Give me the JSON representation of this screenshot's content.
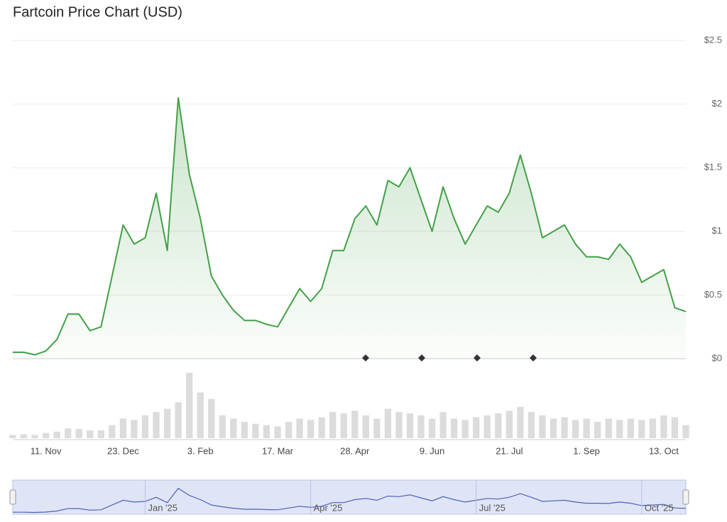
{
  "chart_data": {
    "type": "line",
    "title": "Fartcoin Price Chart (USD)",
    "categories": [
      null,
      null,
      null,
      "11. Nov",
      null,
      null,
      null,
      null,
      null,
      null,
      "23. Dec",
      null,
      null,
      null,
      null,
      null,
      null,
      "3. Feb",
      null,
      null,
      null,
      null,
      null,
      null,
      "17. Mar",
      null,
      null,
      null,
      null,
      null,
      null,
      "28. Apr",
      null,
      null,
      null,
      null,
      null,
      null,
      "9. Jun",
      null,
      null,
      null,
      null,
      null,
      null,
      "21. Jul",
      null,
      null,
      null,
      null,
      null,
      null,
      "1. Sep",
      null,
      null,
      null,
      null,
      null,
      null,
      "13. Oct",
      null,
      null
    ],
    "navigator_categories": [
      null,
      null,
      null,
      null,
      null,
      null,
      null,
      null,
      null,
      null,
      null,
      null,
      "Jan '25",
      null,
      null,
      null,
      null,
      null,
      null,
      null,
      null,
      null,
      null,
      null,
      null,
      null,
      null,
      "Apr '25",
      null,
      null,
      null,
      null,
      null,
      null,
      null,
      null,
      null,
      null,
      null,
      null,
      null,
      null,
      "Jul '25",
      null,
      null,
      null,
      null,
      null,
      null,
      null,
      null,
      null,
      null,
      null,
      null,
      null,
      null,
      "Oct '25",
      null,
      null,
      null,
      null
    ],
    "series": [
      {
        "name": "Price",
        "color": "#43a047",
        "values": [
          0.05,
          0.05,
          0.03,
          0.06,
          0.15,
          0.35,
          0.35,
          0.22,
          0.25,
          0.65,
          1.05,
          0.9,
          0.95,
          1.3,
          0.85,
          2.05,
          1.45,
          1.1,
          0.65,
          0.5,
          0.38,
          0.3,
          0.3,
          0.27,
          0.25,
          0.4,
          0.55,
          0.45,
          0.55,
          0.85,
          0.85,
          1.1,
          1.2,
          1.05,
          1.4,
          1.35,
          1.5,
          1.25,
          1.0,
          1.35,
          1.1,
          0.9,
          1.05,
          1.2,
          1.15,
          1.3,
          1.6,
          1.3,
          0.95,
          1.0,
          1.05,
          0.9,
          0.8,
          0.8,
          0.78,
          0.9,
          0.8,
          0.6,
          0.65,
          0.7,
          0.4,
          0.37
        ]
      }
    ],
    "volume": {
      "color": "#dcdcdc",
      "values": [
        5,
        6,
        5,
        8,
        10,
        15,
        14,
        12,
        12,
        20,
        30,
        28,
        35,
        40,
        45,
        55,
        100,
        70,
        60,
        35,
        30,
        25,
        22,
        20,
        18,
        25,
        30,
        28,
        32,
        40,
        38,
        42,
        35,
        30,
        45,
        40,
        38,
        35,
        30,
        40,
        30,
        28,
        32,
        35,
        38,
        42,
        48,
        40,
        35,
        30,
        32,
        28,
        30,
        25,
        30,
        28,
        30,
        28,
        30,
        35,
        32,
        20
      ]
    },
    "navigator_color": "#4a62b8",
    "ylim": [
      0,
      2.5
    ],
    "yticks": [
      {
        "value": 0,
        "label": "$0"
      },
      {
        "value": 0.5,
        "label": "$0.5"
      },
      {
        "value": 1,
        "label": "$1"
      },
      {
        "value": 1.5,
        "label": "$1.5"
      },
      {
        "value": 2,
        "label": "$2"
      },
      {
        "value": 2.5,
        "label": "$2.5"
      }
    ],
    "grid": true
  }
}
